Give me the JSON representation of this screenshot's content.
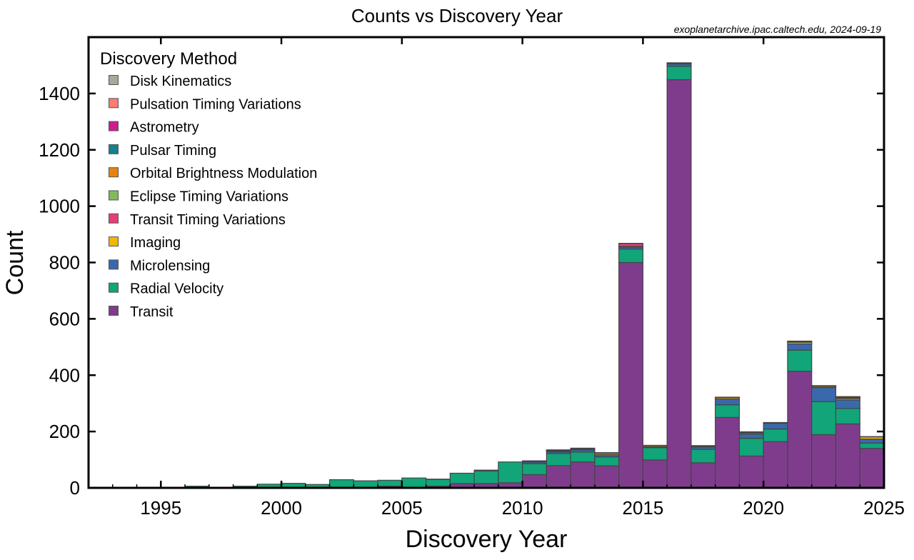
{
  "chart_data": {
    "type": "bar",
    "stacked": true,
    "title": "Counts vs Discovery Year",
    "annotation": "exoplanetarchive.ipac.caltech.edu, 2024-09-19",
    "xlabel": "Discovery Year",
    "ylabel": "Count",
    "xlim": [
      1992,
      2025
    ],
    "ylim": [
      0,
      1600
    ],
    "xticks": [
      1995,
      2000,
      2005,
      2010,
      2015,
      2020,
      2025
    ],
    "yticks": [
      0,
      200,
      400,
      600,
      800,
      1000,
      1200,
      1400
    ],
    "grid": false,
    "legend": {
      "title": "Discovery Method",
      "placement": "top-left"
    },
    "x": [
      1992,
      1993,
      1994,
      1995,
      1996,
      1997,
      1998,
      1999,
      2000,
      2001,
      2002,
      2003,
      2004,
      2005,
      2006,
      2007,
      2008,
      2009,
      2010,
      2011,
      2012,
      2013,
      2014,
      2015,
      2016,
      2017,
      2018,
      2019,
      2020,
      2021,
      2022,
      2023,
      2024
    ],
    "series": [
      {
        "name": "Transit",
        "color": "#7F3C8D",
        "values": [
          0,
          0,
          0,
          0,
          0,
          0,
          0,
          0,
          0,
          0,
          1,
          0,
          6,
          0,
          6,
          15,
          15,
          18,
          47,
          79,
          92,
          78,
          800,
          99,
          1449,
          89,
          250,
          113,
          164,
          414,
          189,
          227,
          140
        ]
      },
      {
        "name": "Radial Velocity",
        "color": "#11A579",
        "values": [
          0,
          1,
          0,
          1,
          6,
          1,
          6,
          13,
          16,
          12,
          28,
          25,
          21,
          35,
          24,
          37,
          45,
          74,
          39,
          43,
          35,
          32,
          48,
          44,
          48,
          48,
          45,
          63,
          45,
          75,
          117,
          55,
          19
        ]
      },
      {
        "name": "Microlensing",
        "color": "#3969AC",
        "values": [
          0,
          0,
          0,
          0,
          0,
          0,
          0,
          0,
          0,
          0,
          0,
          0,
          0,
          0,
          0,
          0,
          0,
          0,
          6,
          6,
          8,
          8,
          7,
          3,
          8,
          8,
          20,
          15,
          20,
          22,
          50,
          30,
          14
        ]
      },
      {
        "name": "Imaging",
        "color": "#F2B701",
        "values": [
          0,
          0,
          0,
          0,
          0,
          0,
          0,
          0,
          0,
          0,
          0,
          0,
          0,
          0,
          1,
          0,
          3,
          0,
          3,
          3,
          2,
          5,
          2,
          4,
          1,
          3,
          5,
          4,
          2,
          6,
          4,
          5,
          8
        ]
      },
      {
        "name": "Transit Timing Variations",
        "color": "#E73F74",
        "values": [
          0,
          0,
          0,
          0,
          0,
          0,
          0,
          0,
          0,
          0,
          0,
          0,
          0,
          0,
          0,
          0,
          0,
          0,
          0,
          0,
          0,
          0,
          10,
          0,
          1,
          0,
          1,
          1,
          0,
          1,
          1,
          1,
          0
        ]
      },
      {
        "name": "Eclipse Timing Variations",
        "color": "#80BA5A",
        "values": [
          0,
          0,
          0,
          0,
          0,
          0,
          0,
          0,
          0,
          0,
          0,
          0,
          0,
          0,
          0,
          0,
          0,
          0,
          1,
          2,
          2,
          1,
          0,
          0,
          1,
          1,
          0,
          1,
          1,
          2,
          1,
          3,
          0
        ]
      },
      {
        "name": "Orbital Brightness Modulation",
        "color": "#E68310",
        "values": [
          0,
          0,
          0,
          0,
          0,
          0,
          0,
          0,
          0,
          0,
          0,
          0,
          0,
          0,
          0,
          0,
          0,
          0,
          0,
          1,
          2,
          0,
          1,
          1,
          1,
          0,
          1,
          1,
          0,
          0,
          0,
          1,
          0
        ]
      },
      {
        "name": "Pulsar Timing",
        "color": "#11838D",
        "values": [
          2,
          0,
          1,
          0,
          0,
          0,
          0,
          0,
          0,
          0,
          0,
          0,
          0,
          0,
          0,
          0,
          0,
          0,
          0,
          1,
          0,
          0,
          0,
          0,
          0,
          1,
          0,
          0,
          0,
          0,
          0,
          0,
          0
        ]
      },
      {
        "name": "Astrometry",
        "color": "#CF1C90",
        "values": [
          0,
          0,
          0,
          0,
          0,
          0,
          0,
          0,
          0,
          0,
          0,
          0,
          0,
          0,
          0,
          0,
          0,
          0,
          0,
          0,
          0,
          1,
          0,
          0,
          0,
          0,
          0,
          0,
          0,
          1,
          1,
          1,
          1
        ]
      },
      {
        "name": "Pulsation Timing Variations",
        "color": "#F97B72",
        "values": [
          0,
          0,
          0,
          0,
          0,
          0,
          0,
          0,
          0,
          0,
          0,
          0,
          0,
          0,
          0,
          0,
          0,
          0,
          0,
          0,
          0,
          0,
          0,
          0,
          0,
          0,
          0,
          0,
          0,
          0,
          0,
          1,
          0
        ]
      },
      {
        "name": "Disk Kinematics",
        "color": "#A5AA99",
        "values": [
          0,
          0,
          0,
          0,
          0,
          0,
          0,
          0,
          0,
          0,
          0,
          0,
          0,
          0,
          0,
          0,
          0,
          0,
          0,
          0,
          0,
          0,
          0,
          0,
          0,
          0,
          0,
          1,
          0,
          0,
          0,
          0,
          0
        ]
      }
    ]
  }
}
